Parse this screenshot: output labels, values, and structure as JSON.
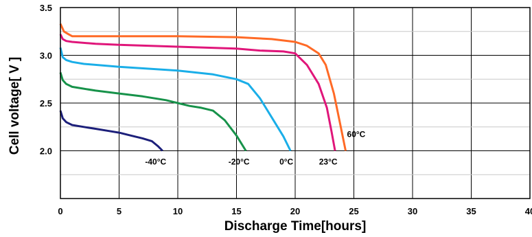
{
  "chart_data": {
    "type": "line",
    "title": "",
    "title_color": "#ff3300",
    "xlabel": "Discharge Time[hours]",
    "ylabel": "Cell voltage[ V ]",
    "xlim": [
      0,
      40
    ],
    "ylim": [
      1.5,
      3.5
    ],
    "x_ticks": [
      0,
      5,
      10,
      15,
      20,
      25,
      30,
      35,
      40
    ],
    "x_tick_labels": [
      "0",
      "5",
      "10",
      "15",
      "20",
      "25",
      "30",
      "35",
      "40"
    ],
    "y_ticks": [
      2.0,
      2.5,
      3.0,
      3.5
    ],
    "y_tick_labels": [
      "2.0",
      "2.5",
      "3.0",
      "3.5"
    ],
    "y_minor_gridlines": [
      1.75,
      2.25,
      2.75,
      3.25
    ],
    "grid": true,
    "series": [
      {
        "name": "-40°C",
        "color": "#1c1f7a",
        "points": [
          [
            0,
            2.42
          ],
          [
            0.2,
            2.34
          ],
          [
            0.5,
            2.3
          ],
          [
            1,
            2.27
          ],
          [
            2,
            2.25
          ],
          [
            3,
            2.23
          ],
          [
            4,
            2.21
          ],
          [
            5,
            2.19
          ],
          [
            6,
            2.16
          ],
          [
            7,
            2.13
          ],
          [
            7.8,
            2.1
          ],
          [
            8.3,
            2.05
          ],
          [
            8.7,
            2.0
          ]
        ]
      },
      {
        "name": "-20°C",
        "color": "#17924a",
        "points": [
          [
            0,
            2.82
          ],
          [
            0.2,
            2.74
          ],
          [
            0.5,
            2.7
          ],
          [
            1,
            2.67
          ],
          [
            3,
            2.63
          ],
          [
            5,
            2.6
          ],
          [
            7,
            2.57
          ],
          [
            9,
            2.53
          ],
          [
            10,
            2.5
          ],
          [
            11,
            2.47
          ],
          [
            12,
            2.45
          ],
          [
            13,
            2.42
          ],
          [
            14,
            2.32
          ],
          [
            15,
            2.16
          ],
          [
            15.8,
            2.0
          ]
        ]
      },
      {
        "name": "0°C",
        "color": "#1aaee8",
        "points": [
          [
            0,
            3.08
          ],
          [
            0.2,
            2.98
          ],
          [
            0.5,
            2.95
          ],
          [
            1,
            2.93
          ],
          [
            2,
            2.91
          ],
          [
            5,
            2.88
          ],
          [
            10,
            2.84
          ],
          [
            13,
            2.8
          ],
          [
            15,
            2.75
          ],
          [
            16,
            2.7
          ],
          [
            17,
            2.55
          ],
          [
            18,
            2.35
          ],
          [
            19,
            2.15
          ],
          [
            19.6,
            2.0
          ]
        ]
      },
      {
        "name": "23°C",
        "color": "#e0167a",
        "points": [
          [
            0,
            3.22
          ],
          [
            0.2,
            3.17
          ],
          [
            0.5,
            3.15
          ],
          [
            1,
            3.14
          ],
          [
            3,
            3.12
          ],
          [
            5,
            3.11
          ],
          [
            10,
            3.09
          ],
          [
            15,
            3.07
          ],
          [
            17,
            3.05
          ],
          [
            19,
            3.04
          ],
          [
            20,
            3.02
          ],
          [
            21,
            2.9
          ],
          [
            22,
            2.7
          ],
          [
            22.7,
            2.45
          ],
          [
            23.1,
            2.2
          ],
          [
            23.4,
            2.0
          ]
        ]
      },
      {
        "name": "60°C",
        "color": "#ff6a26",
        "points": [
          [
            0,
            3.33
          ],
          [
            0.3,
            3.25
          ],
          [
            0.7,
            3.22
          ],
          [
            1,
            3.2
          ],
          [
            3,
            3.2
          ],
          [
            10,
            3.2
          ],
          [
            15,
            3.19
          ],
          [
            18,
            3.17
          ],
          [
            20,
            3.14
          ],
          [
            21,
            3.1
          ],
          [
            22,
            3.02
          ],
          [
            22.6,
            2.9
          ],
          [
            23.3,
            2.6
          ],
          [
            23.8,
            2.3
          ],
          [
            24.3,
            2.0
          ]
        ]
      }
    ]
  }
}
